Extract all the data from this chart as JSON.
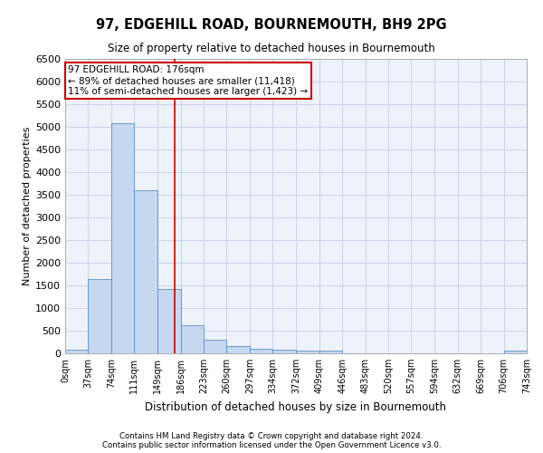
{
  "title": "97, EDGEHILL ROAD, BOURNEMOUTH, BH9 2PG",
  "subtitle": "Size of property relative to detached houses in Bournemouth",
  "xlabel": "Distribution of detached houses by size in Bournemouth",
  "ylabel": "Number of detached properties",
  "bar_edges": [
    0,
    37,
    74,
    111,
    149,
    186,
    223,
    260,
    297,
    334,
    372,
    409,
    446,
    483,
    520,
    557,
    594,
    632,
    669,
    706,
    743
  ],
  "bar_heights": [
    75,
    1650,
    5080,
    3600,
    1420,
    620,
    300,
    160,
    110,
    75,
    60,
    55,
    0,
    0,
    0,
    0,
    0,
    0,
    0,
    70
  ],
  "bar_color": "#c5d8f0",
  "bar_edge_color": "#5b8ec4",
  "ylim": [
    0,
    6500
  ],
  "yticks": [
    0,
    500,
    1000,
    1500,
    2000,
    2500,
    3000,
    3500,
    4000,
    4500,
    5000,
    5500,
    6000,
    6500
  ],
  "property_size": 176,
  "annotation_title": "97 EDGEHILL ROAD: 176sqm",
  "annotation_line1": "← 89% of detached houses are smaller (11,418)",
  "annotation_line2": "11% of semi-detached houses are larger (1,423) →",
  "vline_color": "#cc0000",
  "annotation_box_color": "#cc0000",
  "footer1": "Contains HM Land Registry data © Crown copyright and database right 2024.",
  "footer2": "Contains public sector information licensed under the Open Government Licence v3.0.",
  "background_color": "#eef2fa",
  "grid_color": "#c8d4e8",
  "xlim": [
    0,
    743
  ]
}
